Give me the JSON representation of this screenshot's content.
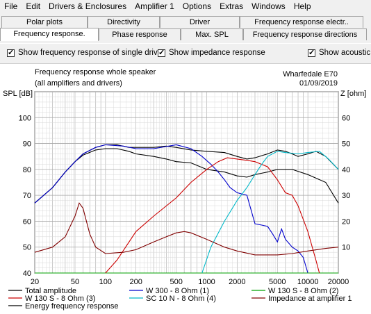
{
  "menu": [
    "File",
    "Edit",
    "Drivers & Enclosures",
    "Amplifier 1",
    "Options",
    "Extras",
    "Windows",
    "Help"
  ],
  "tabs_top": [
    "Polar plots",
    "Directivity",
    "Driver",
    "Frequency response electr.."
  ],
  "tabs_bottom": [
    "Frequency response.",
    "Phase response",
    "Max. SPL",
    "Frequency response directions"
  ],
  "options": {
    "single_drive": "Show frequency response of single drive",
    "impedance": "Show impedance response",
    "acoustic": "Show acoustic"
  },
  "chart_header": {
    "title_line1": "Frequency response whole speaker",
    "title_line2": "(all amplifiers and drivers)",
    "project": "Wharfedale E70",
    "date": "01/09/2019"
  },
  "chart_data": {
    "type": "line",
    "xscale": "log",
    "xlim": [
      20,
      20000
    ],
    "ylim": [
      40,
      110
    ],
    "y2lim": [
      0,
      70
    ],
    "ylabel": "SPL [dB]",
    "y2label": "Z [ohm]",
    "xticks": [
      20,
      50,
      100,
      200,
      500,
      1000,
      2000,
      5000,
      10000,
      20000
    ],
    "xtick_labels": [
      "20",
      "50",
      "100",
      "200",
      "500",
      "1000",
      "2000",
      "5000",
      "10000",
      "20000"
    ],
    "yticks": [
      40,
      50,
      60,
      70,
      80,
      90,
      100
    ],
    "y2ticks": [
      10,
      20,
      30,
      40,
      50,
      60
    ],
    "grid": true,
    "series": [
      {
        "name": "Total amplitude",
        "color": "#000000",
        "axis": "left",
        "points": [
          [
            20,
            67
          ],
          [
            30,
            73
          ],
          [
            40,
            79
          ],
          [
            50,
            83
          ],
          [
            60,
            85.5
          ],
          [
            80,
            87.5
          ],
          [
            100,
            88
          ],
          [
            130,
            88
          ],
          [
            170,
            87
          ],
          [
            200,
            86
          ],
          [
            300,
            85
          ],
          [
            400,
            84
          ],
          [
            500,
            83
          ],
          [
            700,
            82.5
          ],
          [
            1000,
            80
          ],
          [
            1500,
            79
          ],
          [
            2000,
            77.5
          ],
          [
            2500,
            77
          ],
          [
            3000,
            78
          ],
          [
            4000,
            79
          ],
          [
            5000,
            80
          ],
          [
            7000,
            80
          ],
          [
            10000,
            78
          ],
          [
            15000,
            75
          ],
          [
            20000,
            67
          ]
        ]
      },
      {
        "name": "Energy frequency response",
        "color": "#000000",
        "axis": "left",
        "points": [
          [
            20,
            67
          ],
          [
            30,
            73
          ],
          [
            40,
            79
          ],
          [
            50,
            83
          ],
          [
            60,
            86
          ],
          [
            80,
            88.5
          ],
          [
            100,
            89.5
          ],
          [
            130,
            89.5
          ],
          [
            170,
            88.5
          ],
          [
            200,
            88.5
          ],
          [
            300,
            88.5
          ],
          [
            400,
            89
          ],
          [
            500,
            88.5
          ],
          [
            700,
            87.5
          ],
          [
            1000,
            87
          ],
          [
            1500,
            86.5
          ],
          [
            2000,
            85
          ],
          [
            2500,
            84
          ],
          [
            3000,
            84.5
          ],
          [
            4000,
            86
          ],
          [
            5000,
            87.5
          ],
          [
            6000,
            87
          ],
          [
            7000,
            86
          ],
          [
            8000,
            85
          ],
          [
            10000,
            86
          ],
          [
            12000,
            87
          ],
          [
            15000,
            85
          ],
          [
            20000,
            80
          ]
        ]
      },
      {
        "name": "W 300 - 8 Ohm (1)",
        "color": "#0000cc",
        "axis": "left",
        "points": [
          [
            20,
            67
          ],
          [
            30,
            73
          ],
          [
            40,
            79
          ],
          [
            50,
            83
          ],
          [
            60,
            86
          ],
          [
            80,
            88.5
          ],
          [
            100,
            89.5
          ],
          [
            150,
            89
          ],
          [
            200,
            88
          ],
          [
            300,
            88
          ],
          [
            500,
            89.5
          ],
          [
            700,
            88
          ],
          [
            900,
            85
          ],
          [
            1100,
            82
          ],
          [
            1300,
            79
          ],
          [
            1500,
            76
          ],
          [
            1700,
            73
          ],
          [
            2000,
            71
          ],
          [
            2500,
            70
          ],
          [
            3000,
            59
          ],
          [
            3500,
            58.5
          ],
          [
            4000,
            58
          ],
          [
            4500,
            55
          ],
          [
            5000,
            52
          ],
          [
            5500,
            57
          ],
          [
            6000,
            53
          ],
          [
            7000,
            50
          ],
          [
            8000,
            48.5
          ],
          [
            9000,
            46
          ],
          [
            10000,
            40
          ]
        ]
      },
      {
        "name": "W 130 S - 8 Ohm (2)",
        "color": "#00a000",
        "axis": "left",
        "points": [
          [
            20,
            40
          ],
          [
            20000,
            40
          ]
        ]
      },
      {
        "name": "W 130 S - 8 Ohm (3)",
        "color": "#cc0000",
        "axis": "left",
        "points": [
          [
            100,
            40
          ],
          [
            130,
            45
          ],
          [
            200,
            56
          ],
          [
            300,
            62
          ],
          [
            500,
            69
          ],
          [
            700,
            75
          ],
          [
            1000,
            80
          ],
          [
            1300,
            83
          ],
          [
            1600,
            84.5
          ],
          [
            2000,
            84
          ],
          [
            2500,
            83.5
          ],
          [
            3000,
            83
          ],
          [
            4000,
            81
          ],
          [
            5000,
            76
          ],
          [
            6000,
            71
          ],
          [
            7000,
            70
          ],
          [
            8000,
            66
          ],
          [
            10000,
            56
          ],
          [
            12000,
            45
          ],
          [
            13000,
            40
          ]
        ]
      },
      {
        "name": "SC 10 N - 8 Ohm (4)",
        "color": "#00b8c8",
        "axis": "left",
        "points": [
          [
            900,
            40
          ],
          [
            1100,
            50
          ],
          [
            1500,
            60
          ],
          [
            2000,
            68
          ],
          [
            2500,
            73
          ],
          [
            3000,
            78
          ],
          [
            3500,
            82
          ],
          [
            4000,
            85
          ],
          [
            5000,
            87
          ],
          [
            6000,
            86.5
          ],
          [
            8000,
            86
          ],
          [
            10000,
            86.5
          ],
          [
            13000,
            87
          ],
          [
            16000,
            84
          ],
          [
            20000,
            80
          ]
        ]
      },
      {
        "name": "Impedance at amplifier 1",
        "color": "#800000",
        "axis": "right",
        "points": [
          [
            20,
            8
          ],
          [
            30,
            10
          ],
          [
            40,
            14
          ],
          [
            50,
            22
          ],
          [
            55,
            27
          ],
          [
            60,
            25
          ],
          [
            70,
            15
          ],
          [
            80,
            10
          ],
          [
            100,
            7.5
          ],
          [
            150,
            8
          ],
          [
            200,
            9
          ],
          [
            300,
            12
          ],
          [
            400,
            14
          ],
          [
            500,
            15.5
          ],
          [
            600,
            16
          ],
          [
            700,
            15.5
          ],
          [
            1000,
            13
          ],
          [
            1500,
            10
          ],
          [
            2000,
            8.5
          ],
          [
            3000,
            7
          ],
          [
            5000,
            7
          ],
          [
            7000,
            7.5
          ],
          [
            10000,
            8.5
          ],
          [
            15000,
            9.5
          ],
          [
            20000,
            10
          ]
        ]
      }
    ],
    "legend": [
      {
        "name": "Total amplitude",
        "color": "#000000"
      },
      {
        "name": "W 300 - 8 Ohm (1)",
        "color": "#0000cc"
      },
      {
        "name": "W 130 S - 8 Ohm (2)",
        "color": "#00a000"
      },
      {
        "name": "W 130 S - 8 Ohm (3)",
        "color": "#cc0000"
      },
      {
        "name": "SC 10 N - 8 Ohm (4)",
        "color": "#00b8c8"
      },
      {
        "name": "Impedance at amplifier 1",
        "color": "#800000"
      },
      {
        "name": "Energy frequency response",
        "color": "#000000"
      }
    ],
    "legend_position": "bottom"
  }
}
